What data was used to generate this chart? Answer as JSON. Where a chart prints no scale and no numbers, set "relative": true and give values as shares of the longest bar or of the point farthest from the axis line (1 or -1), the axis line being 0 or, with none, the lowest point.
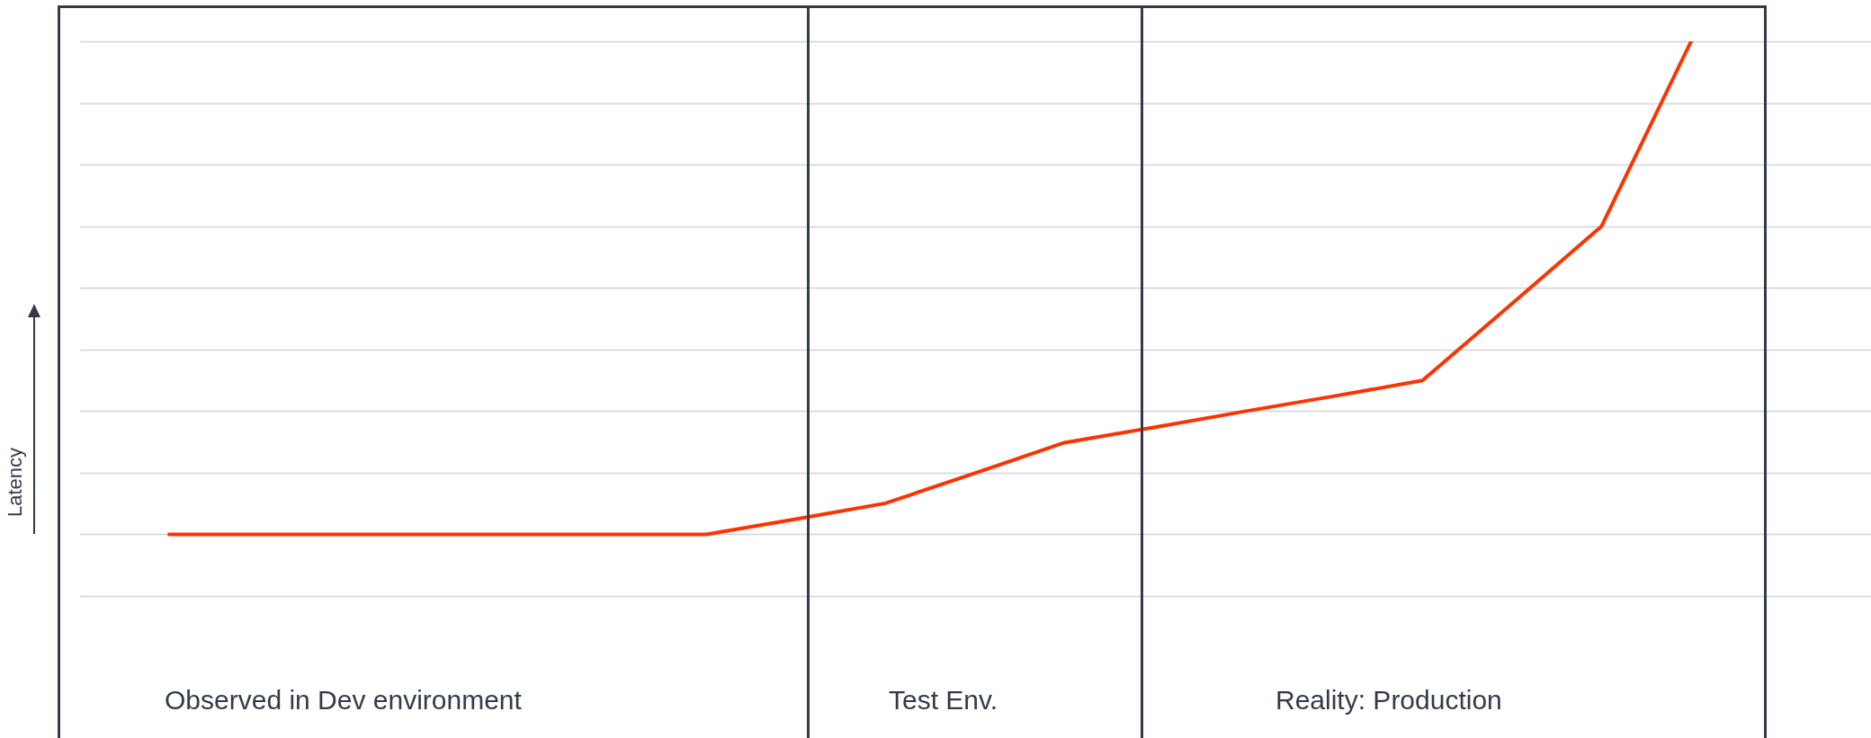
{
  "chart_data": {
    "type": "line",
    "ylabel": "Latency",
    "annotations": [
      "Observed in Dev environment",
      "Test Env.",
      "Reality: Production"
    ],
    "categories": [
      null,
      null,
      null,
      null,
      null,
      null,
      null,
      null,
      null,
      null,
      null,
      null,
      null,
      null,
      null,
      null,
      null,
      null
    ],
    "relative": true,
    "series": [
      {
        "color": "#ff3300",
        "values": [
          0,
          0,
          0,
          0,
          0,
          0,
          0,
          0.031,
          0.063,
          0.124,
          0.186,
          0.217,
          0.249,
          0.28,
          0.312,
          0.468,
          0.625,
          1
        ]
      }
    ],
    "grid": "y",
    "legend": false,
    "marker": "none",
    "line_style": "solid"
  }
}
